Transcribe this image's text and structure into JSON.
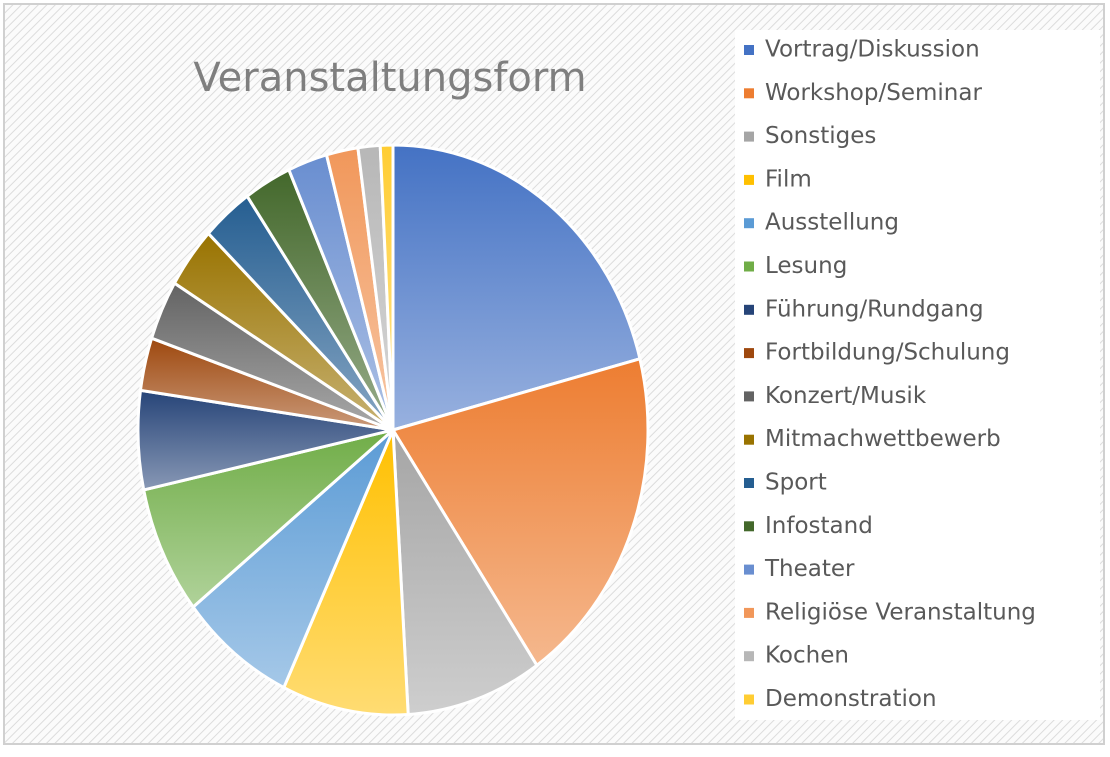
{
  "chart_data": {
    "type": "pie",
    "title": "Veranstaltungsform",
    "categories": [
      "Vortrag/Diskussion",
      "Workshop/Seminar",
      "Sonstiges",
      "Film",
      "Ausstellung",
      "Lesung",
      "Führung/Rundgang",
      "Fortbildung/Schulung",
      "Konzert/Musik",
      "Mitmachwettbewerb",
      "Sport",
      "Infostand",
      "Theater",
      "Religiöse Veranstaltung",
      "Kochen",
      "Demonstration"
    ],
    "values": [
      21,
      19.5,
      8.6,
      8,
      7.3,
      7.3,
      5.6,
      3,
      3.4,
      3.5,
      3.2,
      3,
      2.5,
      2,
      1.4,
      0.8
    ],
    "colors": [
      "#4472c4",
      "#ed7d31",
      "#a5a5a5",
      "#ffc000",
      "#5b9bd5",
      "#70ad47",
      "#264478",
      "#9e480e",
      "#636363",
      "#997300",
      "#255e91",
      "#43682b",
      "#698ed0",
      "#f1975a",
      "#b7b7b7",
      "#ffcd33"
    ],
    "legend": "right"
  }
}
